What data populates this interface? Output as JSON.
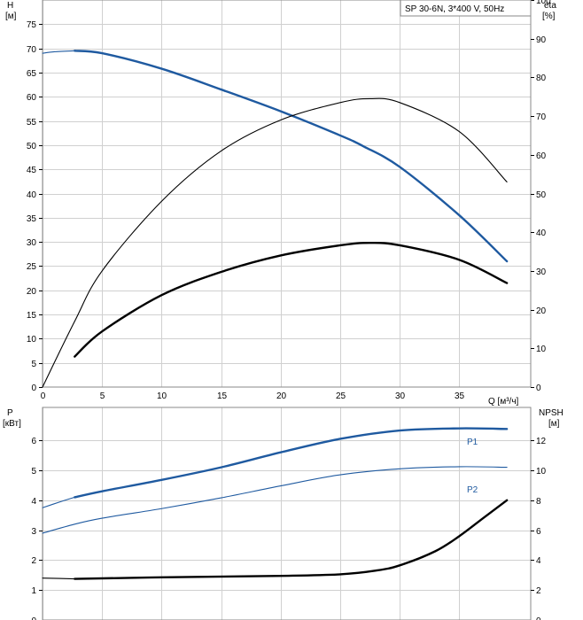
{
  "chart_data": [
    {
      "type": "line",
      "title": "SP 30-6N, 3*400 V, 50Hz",
      "x_axis": {
        "label": "Q [м³/ч]",
        "ticks": [
          0,
          5,
          10,
          15,
          20,
          25,
          30,
          35
        ],
        "range": [
          0,
          41
        ]
      },
      "y_left": {
        "label_top": "H",
        "label_unit": "[м]",
        "ticks": [
          0,
          5,
          10,
          15,
          20,
          25,
          30,
          35,
          40,
          45,
          50,
          55,
          60,
          65,
          70,
          75
        ],
        "range": [
          0,
          80
        ]
      },
      "y_right": {
        "label_top": "eta",
        "label_unit": "[%]",
        "ticks": [
          0,
          10,
          20,
          30,
          40,
          50,
          60,
          70,
          80,
          90,
          100
        ],
        "range": [
          0,
          100
        ]
      },
      "grid": true,
      "legend_position": "top-right",
      "series": [
        {
          "axis": "left",
          "color": "#1f5aa0",
          "style": "thick",
          "x": [
            2.7,
            5,
            10,
            15,
            20,
            25,
            27,
            30,
            35,
            39
          ],
          "y": [
            69.5,
            69,
            65.8,
            61.5,
            57,
            52,
            49.7,
            45.5,
            35.5,
            26
          ]
        },
        {
          "axis": "left",
          "color": "#1f5aa0",
          "style": "thin",
          "x": [
            0,
            1,
            2.7
          ],
          "y": [
            69,
            69.3,
            69.5
          ]
        },
        {
          "axis": "right",
          "color": "#000000",
          "style": "thin",
          "x": [
            0,
            2.7,
            5,
            10,
            15,
            20,
            25,
            27.5,
            30,
            35,
            39
          ],
          "y": [
            0,
            17,
            30,
            48,
            61,
            69,
            73.5,
            74.5,
            73.5,
            66,
            53
          ]
        },
        {
          "axis": "left",
          "color": "#000000",
          "style": "thick",
          "x": [
            2.7,
            5,
            10,
            15,
            20,
            25,
            27.5,
            30,
            35,
            39
          ],
          "y": [
            6.3,
            11.5,
            19,
            23.8,
            27.2,
            29.3,
            29.8,
            29.3,
            26.3,
            21.5
          ]
        }
      ]
    },
    {
      "type": "line",
      "x_axis": {
        "ticks": [
          0,
          5,
          10,
          15,
          20,
          25,
          30,
          35
        ],
        "range": [
          0,
          41
        ]
      },
      "y_left": {
        "label_top": "P",
        "label_unit": "[кВт]",
        "ticks": [
          0,
          1,
          2,
          3,
          4,
          5,
          6
        ],
        "range": [
          0,
          7.1
        ]
      },
      "y_right": {
        "label_top": "NPSH",
        "label_unit": "[м]",
        "ticks": [
          0,
          2,
          4,
          6,
          8,
          10,
          12
        ],
        "range": [
          0,
          14.2
        ]
      },
      "grid": true,
      "series": [
        {
          "name": "P1",
          "axis": "left",
          "color": "#1f5aa0",
          "style": "thick",
          "x": [
            2.7,
            5,
            10,
            15,
            20,
            25,
            30,
            35,
            39
          ],
          "y": [
            4.1,
            4.3,
            4.68,
            5.1,
            5.6,
            6.05,
            6.33,
            6.4,
            6.38
          ]
        },
        {
          "axis": "left",
          "color": "#1f5aa0",
          "style": "thin",
          "x": [
            0,
            1.5,
            2.7
          ],
          "y": [
            3.75,
            3.95,
            4.1
          ]
        },
        {
          "name": "P2",
          "axis": "left",
          "color": "#1f5aa0",
          "style": "thin",
          "x": [
            0,
            2.7,
            5,
            10,
            15,
            20,
            25,
            30,
            35,
            39
          ],
          "y": [
            2.9,
            3.2,
            3.4,
            3.72,
            4.08,
            4.48,
            4.85,
            5.05,
            5.12,
            5.1
          ]
        },
        {
          "axis": "right",
          "color": "#000000",
          "style": "thick",
          "x": [
            2.7,
            10,
            20,
            25,
            28,
            30,
            33,
            35,
            37,
            39
          ],
          "y": [
            2.75,
            2.85,
            2.95,
            3.05,
            3.3,
            3.65,
            4.6,
            5.6,
            6.8,
            8.0
          ]
        },
        {
          "axis": "right",
          "color": "#000000",
          "style": "thin",
          "x": [
            0,
            2.7
          ],
          "y": [
            2.8,
            2.75
          ]
        }
      ]
    }
  ]
}
